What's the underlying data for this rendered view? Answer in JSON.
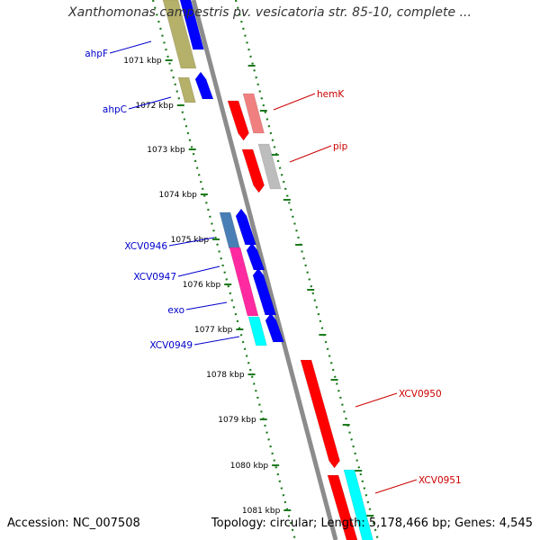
{
  "title": "Xanthomonas campestris pv. vesicatoria str. 85-10, complete ...",
  "footer": {
    "accession_label": "Accession: NC_007508",
    "topology_label": "Topology: circular; Length: 5,178,466 bp; Genes: 4,545"
  },
  "ticks": [
    "1071 kbp",
    "1072 kbp",
    "1073 kbp",
    "1074 kbp",
    "1075 kbp",
    "1076 kbp",
    "1077 kbp",
    "1078 kbp",
    "1079 kbp",
    "1080 kbp",
    "1081 kbp"
  ],
  "left_genes": [
    "ahpF",
    "ahpC",
    "XCV0946",
    "XCV0947",
    "exo",
    "XCV0949"
  ],
  "right_genes": [
    "hemK",
    "pip",
    "XCV0950",
    "XCV0951"
  ],
  "colors": {
    "backbone": "#8c8c8c",
    "dotted_track": "#1e7a1e",
    "left_label": "#0000cc",
    "right_label": "#cc0000",
    "blue": "#0000ff",
    "olive": "#b5b06a",
    "steelblue": "#4a7fb5",
    "pink": "#ff2aa0",
    "cyan": "#00ffff",
    "red": "#ff0000",
    "lightred": "#f08080",
    "gray": "#bdbdbd"
  }
}
